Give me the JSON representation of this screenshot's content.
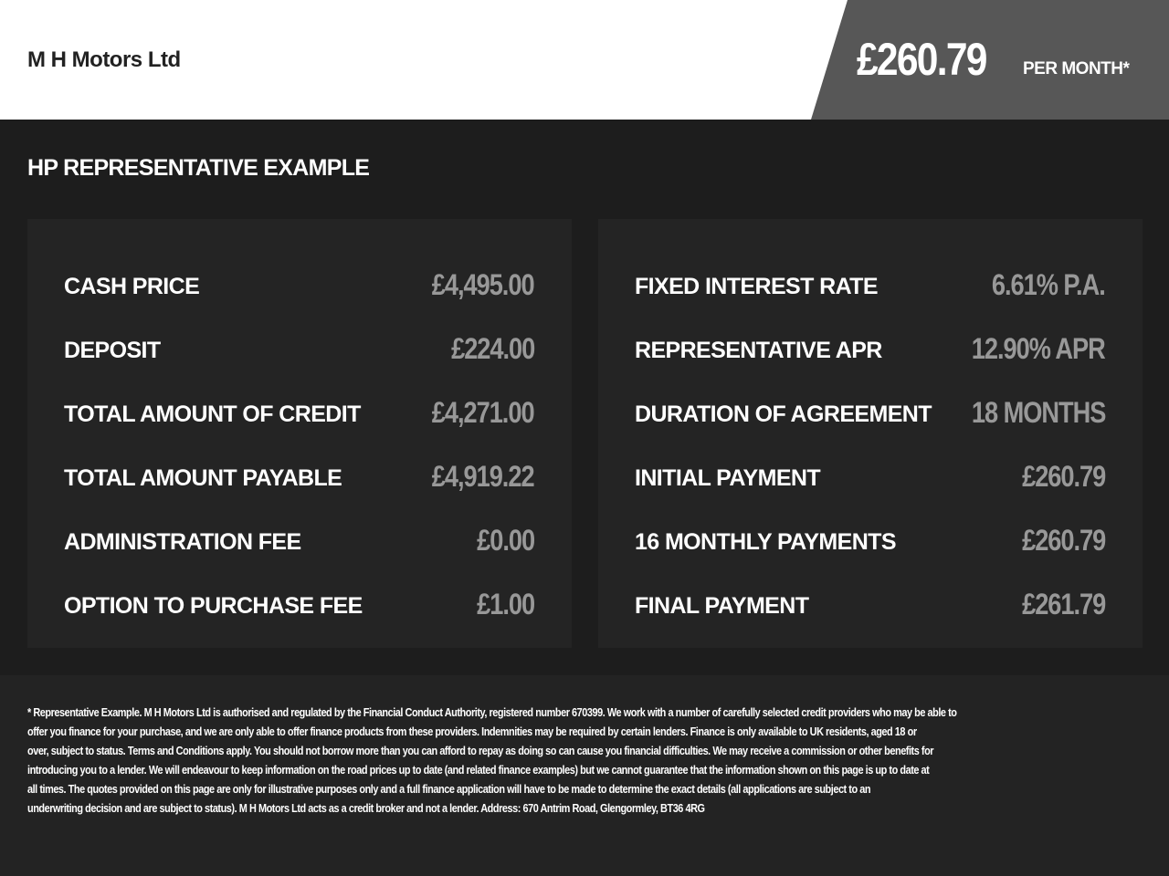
{
  "header": {
    "dealer": "M H Motors Ltd",
    "monthly_price": "£260.79",
    "per_month_label": "PER MONTH*"
  },
  "section_title": "HP REPRESENTATIVE EXAMPLE",
  "left_panel": [
    {
      "label": "CASH PRICE",
      "value": "£4,495.00"
    },
    {
      "label": "DEPOSIT",
      "value": "£224.00"
    },
    {
      "label": "TOTAL AMOUNT OF CREDIT",
      "value": "£4,271.00"
    },
    {
      "label": "TOTAL AMOUNT PAYABLE",
      "value": "£4,919.22"
    },
    {
      "label": "ADMINISTRATION FEE",
      "value": "£0.00"
    },
    {
      "label": "OPTION TO PURCHASE FEE",
      "value": "£1.00"
    }
  ],
  "right_panel": [
    {
      "label": "FIXED INTEREST RATE",
      "value": "6.61% P.A."
    },
    {
      "label": "REPRESENTATIVE APR",
      "value": "12.90% APR"
    },
    {
      "label": "DURATION OF AGREEMENT",
      "value": "18 MONTHS"
    },
    {
      "label": "INITIAL PAYMENT",
      "value": "£260.79"
    },
    {
      "label": "16 MONTHLY PAYMENTS",
      "value": "£260.79"
    },
    {
      "label": "FINAL PAYMENT",
      "value": "£261.79"
    }
  ],
  "disclaimer_lines": [
    "* Representative Example. M H Motors Ltd is authorised and regulated by the Financial Conduct Authority, registered number 670399. We work with a number of carefully selected credit providers who may be able to",
    "offer you finance for your purchase, and we are only able to offer finance products from these providers. Indemnities may be required by certain lenders. Finance is only available to UK residents, aged 18 or",
    "over, subject to status. Terms and Conditions apply. You should not borrow more than you can afford to repay as doing so can cause you financial difficulties. We may receive a commission or other benefits for",
    "introducing you to a lender. We will endeavour to keep information on the road prices up to date (and related finance examples) but we cannot guarantee that the information shown on this page is up to date at",
    "all times. The quotes provided on this page are only for illustrative purposes only and a full finance application will have to be made to determine the exact details (all applications are subject to an",
    "underwriting decision and are subject to status). M H Motors Ltd acts as a credit broker and not a lender. Address: 670 Antrim Road, Glengormley, BT36 4RG"
  ]
}
